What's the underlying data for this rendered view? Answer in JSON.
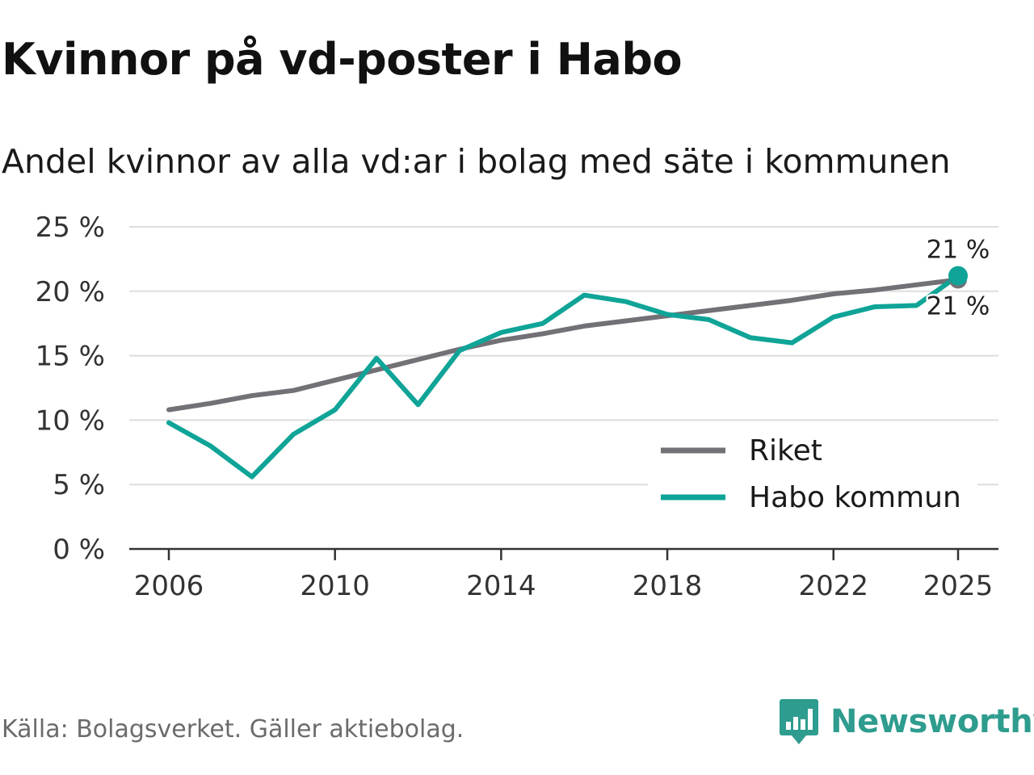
{
  "header": {
    "title": "Kvinnor på vd-poster i Habo",
    "subtitle": "Andel kvinnor av alla vd:ar i bolag med säte i kommunen"
  },
  "footer": {
    "source": "Källa: Bolagsverket. Gäller aktiebolag.",
    "brand": "Newsworthy"
  },
  "colors": {
    "riket": "#737076",
    "habo": "#0fa497",
    "grid": "#dddddd",
    "axis": "#333333",
    "brand": "#2e9c8e"
  },
  "chart_data": {
    "type": "line",
    "title": "Kvinnor på vd-poster i Habo",
    "subtitle": "Andel kvinnor av alla vd:ar i bolag med säte i kommunen",
    "xlabel": "",
    "ylabel": "",
    "x": [
      2006,
      2007,
      2008,
      2009,
      2010,
      2011,
      2012,
      2013,
      2014,
      2015,
      2016,
      2017,
      2018,
      2019,
      2020,
      2021,
      2022,
      2023,
      2024,
      2025
    ],
    "xlim": [
      2006,
      2025
    ],
    "xticks": [
      2006,
      2010,
      2014,
      2018,
      2022,
      2025
    ],
    "xtick_labels": [
      "2006",
      "2010",
      "2014",
      "2018",
      "2022",
      "2025"
    ],
    "ylim": [
      0,
      25
    ],
    "yticks": [
      0,
      5,
      10,
      15,
      20,
      25
    ],
    "ytick_labels": [
      "0 %",
      "5 %",
      "10 %",
      "15 %",
      "20 %",
      "25 %"
    ],
    "grid": true,
    "legend": "right",
    "series": [
      {
        "name": "Riket",
        "color": "#737076",
        "values": [
          10.8,
          11.3,
          11.9,
          12.3,
          13.1,
          13.9,
          14.7,
          15.5,
          16.2,
          16.7,
          17.3,
          17.7,
          18.1,
          18.5,
          18.9,
          19.3,
          19.8,
          20.1,
          20.5,
          20.9
        ],
        "end_label": "21 %"
      },
      {
        "name": "Habo kommun",
        "color": "#0fa497",
        "values": [
          9.8,
          8.0,
          5.6,
          8.9,
          10.8,
          14.8,
          11.2,
          15.4,
          16.8,
          17.5,
          19.7,
          19.2,
          18.2,
          17.8,
          16.4,
          16.0,
          18.0,
          18.8,
          18.9,
          21.2
        ],
        "end_label": "21 %"
      }
    ]
  }
}
